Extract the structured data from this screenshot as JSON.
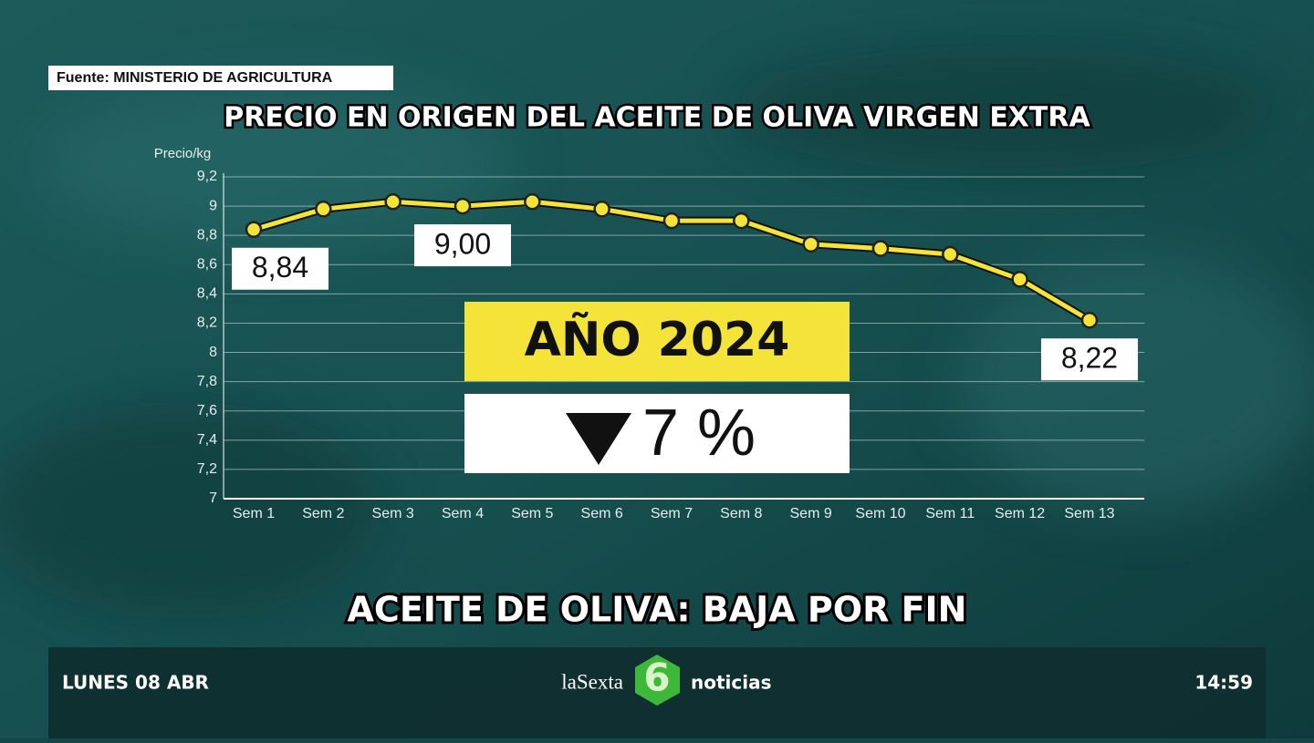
{
  "source": "Fuente: MINISTERIO DE AGRICULTURA",
  "chart_data": {
    "type": "line",
    "title": "PRECIO EN ORIGEN DEL ACEITE DE OLIVA VIRGEN EXTRA",
    "y_label": "Precio/kg",
    "categories": [
      "Sem 1",
      "Sem 2",
      "Sem 3",
      "Sem 4",
      "Sem 5",
      "Sem 6",
      "Sem 7",
      "Sem 8",
      "Sem 9",
      "Sem 10",
      "Sem 11",
      "Sem 12",
      "Sem 13"
    ],
    "values": [
      8.84,
      8.98,
      9.03,
      9.0,
      9.03,
      8.98,
      8.9,
      8.9,
      8.74,
      8.71,
      8.67,
      8.5,
      8.22
    ],
    "value_labels": [
      "8,84",
      null,
      null,
      "9,00",
      null,
      null,
      null,
      null,
      null,
      null,
      null,
      null,
      "8,22"
    ],
    "color": "#f4e43a",
    "ylim": [
      7,
      9.2
    ],
    "yticks": [
      7,
      {
        "value": 7.2,
        "label": "7,2"
      },
      {
        "value": 7.4,
        "label": "7,4"
      },
      {
        "value": 7.6,
        "label": "7,6"
      },
      {
        "value": 7.8,
        "label": "7,8"
      },
      8,
      {
        "value": 8.2,
        "label": "8,2"
      },
      {
        "value": 8.4,
        "label": "8,4"
      },
      {
        "value": 8.6,
        "label": "8,6"
      },
      {
        "value": 8.8,
        "label": "8,8"
      },
      9,
      {
        "value": 9.2,
        "label": "9,2"
      }
    ],
    "grid": true
  },
  "overlay": {
    "year": "AÑO 2024",
    "change": "7 %"
  },
  "headline": "ACEITE DE OLIVA: BAJA POR FIN",
  "ticker": {
    "date": "LUNES 08 ABR",
    "brand": "laSexta",
    "brand_number": "6",
    "program": "noticias",
    "time": "14:59"
  }
}
